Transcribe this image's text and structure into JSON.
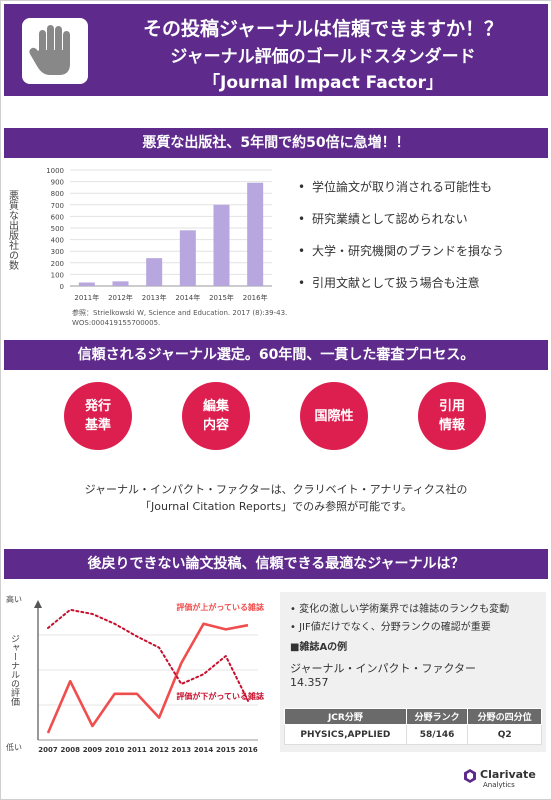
{
  "header": {
    "line1": "その投稿ジャーナルは信頼できますか！？",
    "line2": "ジャーナル評価のゴールドスタンダード",
    "line3": "「Journal Impact Factor」"
  },
  "section1": {
    "title": "悪質な出版社、5年間で約50倍に急増！！",
    "bullets": [
      "学位論文が取り消される可能性も",
      "研究業績として認められない",
      "大学・研究機関のブランドを損なう",
      "引用文献として扱う場合も注意"
    ],
    "ref_line1": "参照：Strielkowski W, Science and Education. 2017 (8):39-43.",
    "ref_line2": "WOS:000419155700005."
  },
  "chart_data": [
    {
      "type": "bar",
      "categories": [
        "2011年",
        "2012年",
        "2013年",
        "2014年",
        "2015年",
        "2016年"
      ],
      "values": [
        30,
        40,
        240,
        480,
        700,
        890
      ],
      "ylabel": "悪質な出版社の数",
      "ylim": [
        0,
        1000
      ],
      "yticks": [
        0,
        100,
        200,
        300,
        400,
        500,
        600,
        700,
        800,
        900,
        1000
      ],
      "bar_color": "#b7a7de"
    },
    {
      "type": "line",
      "x": [
        "2007",
        "2008",
        "2009",
        "2010",
        "2011",
        "2012",
        "2013",
        "2014",
        "2015",
        "2016"
      ],
      "ylabel": "ジャーナルの評価",
      "y_high_label": "高い",
      "y_low_label": "低い",
      "series": [
        {
          "name": "評価が上がっている雑誌",
          "style": "solid",
          "color": "#f04e4e",
          "values": [
            0.05,
            0.42,
            0.1,
            0.33,
            0.33,
            0.16,
            0.55,
            0.83,
            0.79,
            0.82
          ]
        },
        {
          "name": "評価が下がっている雑誌",
          "style": "dotted",
          "color": "#c8102e",
          "values": [
            0.8,
            0.93,
            0.9,
            0.83,
            0.74,
            0.66,
            0.4,
            0.47,
            0.6,
            0.28
          ]
        }
      ]
    }
  ],
  "section2": {
    "title": "信頼されるジャーナル選定。60年間、一貫した審査プロセス。",
    "circles": [
      {
        "l1": "発行",
        "l2": "基準"
      },
      {
        "l1": "編集",
        "l2": "内容"
      },
      {
        "l1": "国際性",
        "l2": ""
      },
      {
        "l1": "引用",
        "l2": "情報"
      }
    ],
    "jif_line1": "ジャーナル・インパクト・ファクターは、クラリベイト・アナリティクス社の",
    "jif_line2": "「Journal Citation Reports」でのみ参照が可能です。"
  },
  "section3": {
    "title": "後戻りできない論文投稿、信頼できる最適なジャーナルは？",
    "bullets": [
      "変化の激しい学術業界では雑誌のランクも変動",
      "JIF値だけでなく、分野ランクの確認が重要"
    ],
    "example_label": "■雑誌Aの例",
    "jif_label": "ジャーナル・インパクト・ファクター",
    "jif_value": "14.357",
    "table": {
      "headers": [
        "JCR分野",
        "分野ランク",
        "分野の四分位"
      ],
      "row": [
        "PHYSICS,APPLIED",
        "58/146",
        "Q2"
      ]
    }
  },
  "logo": {
    "name": "Clarivate",
    "sub": "Analytics"
  }
}
